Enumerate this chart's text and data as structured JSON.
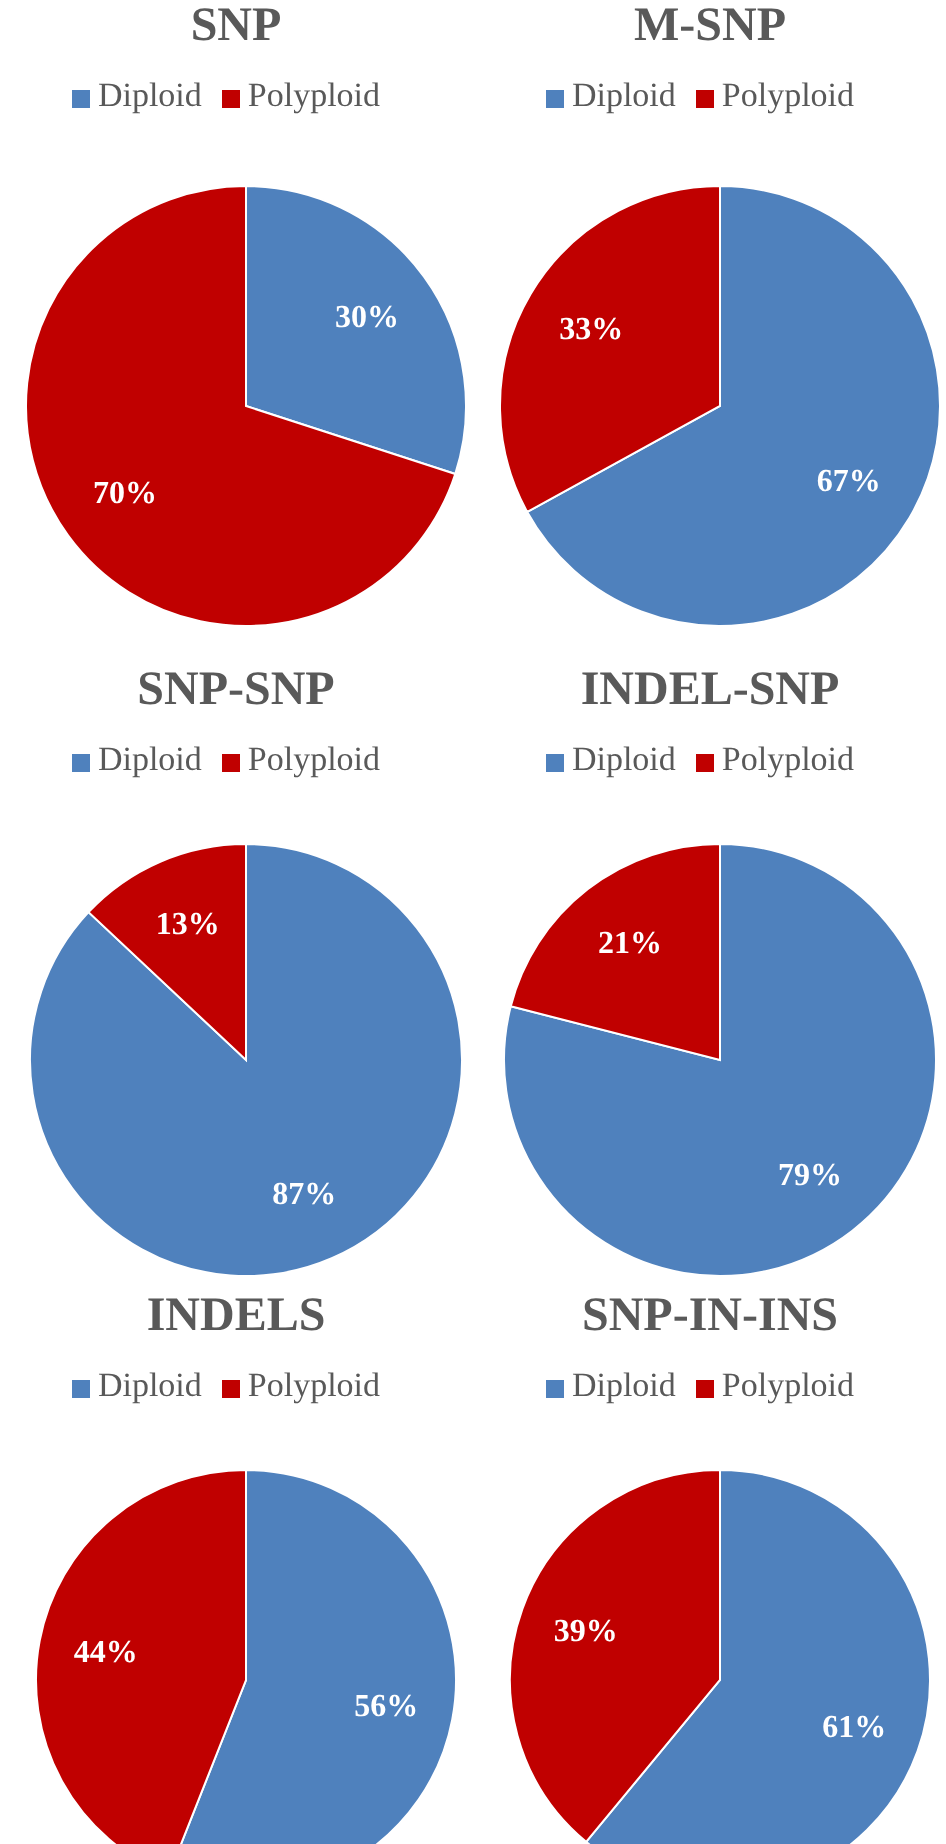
{
  "chart_data": [
    {
      "type": "pie",
      "title": "SNP",
      "categories": [
        "Diploid",
        "Polyploid"
      ],
      "values": [
        30,
        70
      ],
      "value_labels": [
        "30%",
        "70%"
      ],
      "colors": [
        "#4f81bd",
        "#c00000"
      ],
      "legend": "top"
    },
    {
      "type": "pie",
      "title": "M-SNP",
      "categories": [
        "Diploid",
        "Polyploid"
      ],
      "values": [
        67,
        33
      ],
      "value_labels": [
        "67%",
        "33%"
      ],
      "colors": [
        "#4f81bd",
        "#c00000"
      ],
      "legend": "top"
    },
    {
      "type": "pie",
      "title": "SNP-SNP",
      "categories": [
        "Diploid",
        "Polyploid"
      ],
      "values": [
        87,
        13
      ],
      "value_labels": [
        "87%",
        "13%"
      ],
      "colors": [
        "#4f81bd",
        "#c00000"
      ],
      "legend": "top"
    },
    {
      "type": "pie",
      "title": "INDEL-SNP",
      "categories": [
        "Diploid",
        "Polyploid"
      ],
      "values": [
        79,
        21
      ],
      "value_labels": [
        "79%",
        "21%"
      ],
      "colors": [
        "#4f81bd",
        "#c00000"
      ],
      "legend": "top"
    },
    {
      "type": "pie",
      "title": "INDELS",
      "categories": [
        "Diploid",
        "Polyploid"
      ],
      "values": [
        56,
        44
      ],
      "value_labels": [
        "56%",
        "44%"
      ],
      "colors": [
        "#4f81bd",
        "#c00000"
      ],
      "legend": "top"
    },
    {
      "type": "pie",
      "title": "SNP-IN-INS",
      "categories": [
        "Diploid",
        "Polyploid"
      ],
      "values": [
        61,
        39
      ],
      "value_labels": [
        "61%",
        "39%"
      ],
      "colors": [
        "#4f81bd",
        "#c00000"
      ],
      "legend": "top"
    }
  ]
}
